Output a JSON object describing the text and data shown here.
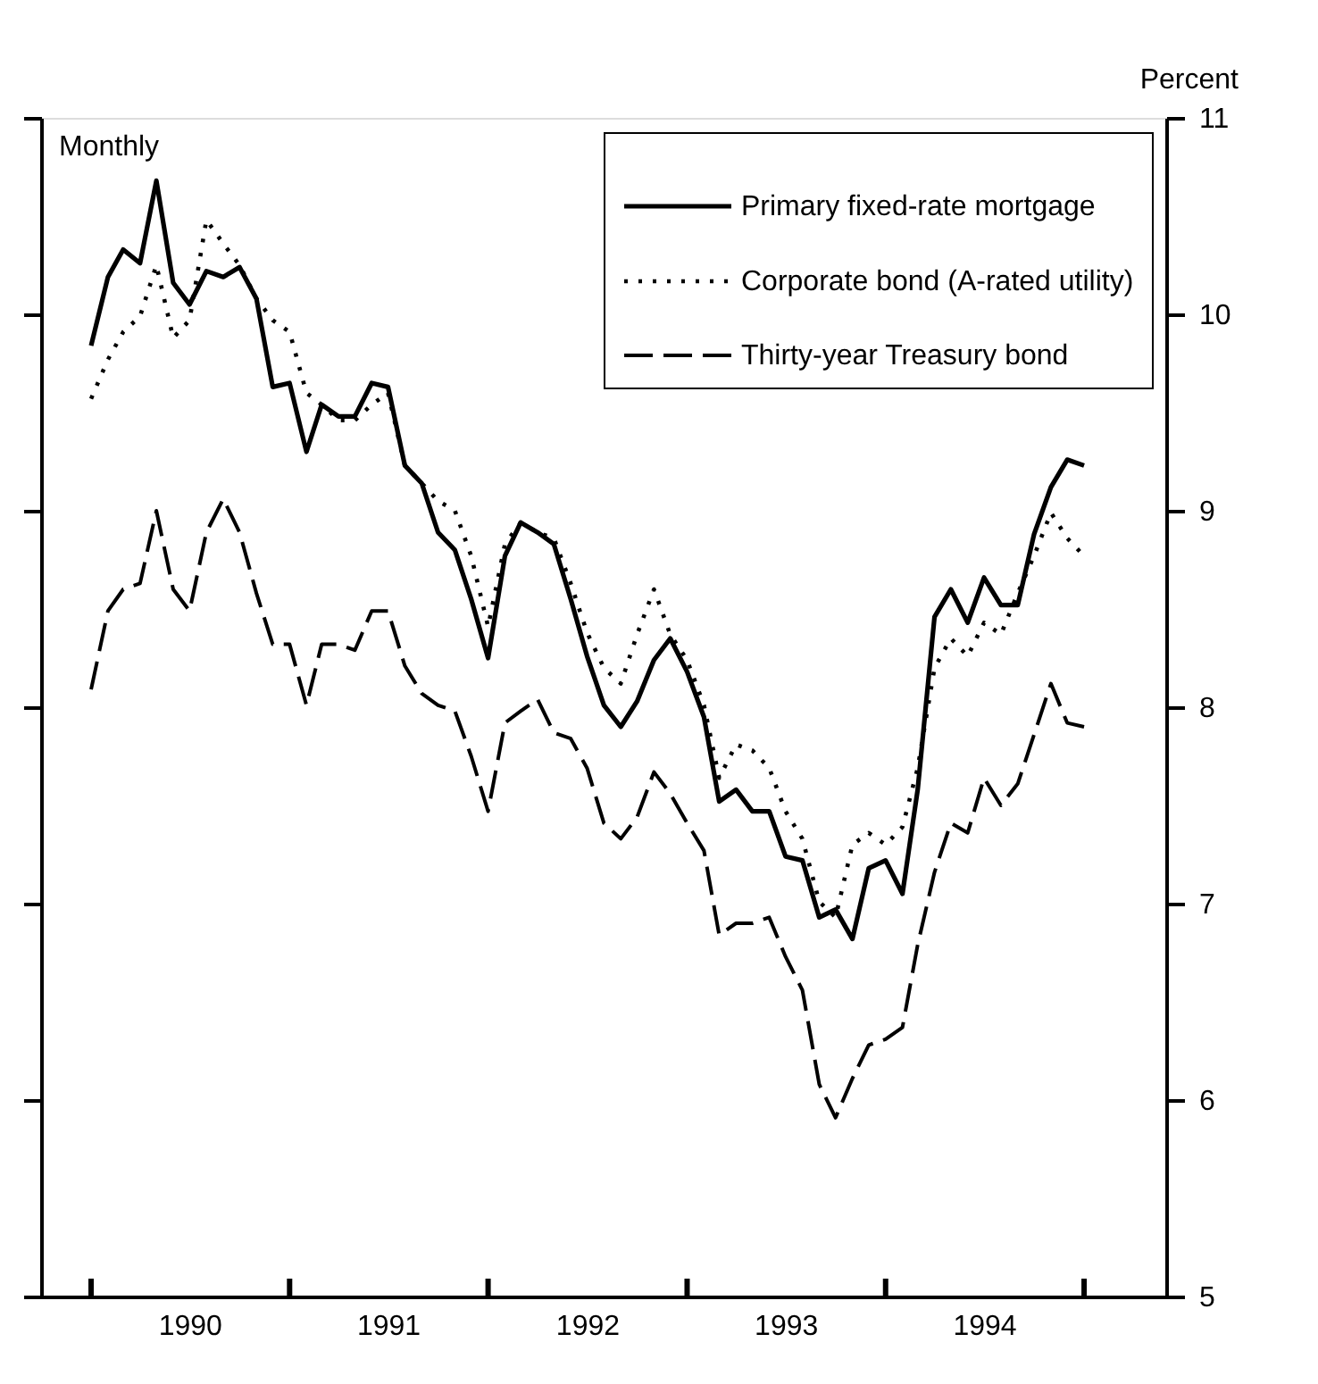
{
  "chart_data": {
    "type": "line",
    "y2label": "Percent",
    "annotations": [
      "Monthly"
    ],
    "legend": "top right",
    "grid": false,
    "x": [
      "1990-01",
      "1990-02",
      "1990-03",
      "1990-04",
      "1990-05",
      "1990-06",
      "1990-07",
      "1990-08",
      "1990-09",
      "1990-10",
      "1990-11",
      "1990-12",
      "1991-01",
      "1991-02",
      "1991-03",
      "1991-04",
      "1991-05",
      "1991-06",
      "1991-07",
      "1991-08",
      "1991-09",
      "1991-10",
      "1991-11",
      "1991-12",
      "1992-01",
      "1992-02",
      "1992-03",
      "1992-04",
      "1992-05",
      "1992-06",
      "1992-07",
      "1992-08",
      "1992-09",
      "1992-10",
      "1992-11",
      "1992-12",
      "1993-01",
      "1993-02",
      "1993-03",
      "1993-04",
      "1993-05",
      "1993-06",
      "1993-07",
      "1993-08",
      "1993-09",
      "1993-10",
      "1993-11",
      "1993-12",
      "1994-01",
      "1994-02",
      "1994-03",
      "1994-04",
      "1994-05",
      "1994-06",
      "1994-07",
      "1994-08",
      "1994-09",
      "1994-10",
      "1994-11",
      "1994-12",
      "1995-01"
    ],
    "series": [
      {
        "name": "Primary fixed-rate mortgage",
        "color": "#000000",
        "line_style": "solid",
        "axis": "y2",
        "values": [
          9.84,
          10.19,
          10.33,
          10.26,
          10.68,
          10.16,
          10.05,
          10.22,
          10.19,
          10.24,
          10.08,
          9.63,
          9.65,
          9.3,
          9.54,
          9.48,
          9.48,
          9.65,
          9.63,
          9.23,
          9.14,
          8.89,
          8.8,
          8.55,
          8.25,
          8.77,
          8.94,
          8.89,
          8.83,
          8.55,
          8.26,
          8.01,
          7.9,
          8.03,
          8.24,
          8.35,
          8.18,
          7.95,
          7.52,
          7.58,
          7.47,
          7.47,
          7.24,
          7.22,
          6.93,
          6.97,
          6.82,
          7.18,
          7.22,
          7.05,
          7.58,
          8.46,
          8.6,
          8.43,
          8.66,
          8.52,
          8.52,
          8.88,
          9.12,
          9.26,
          9.23
        ]
      },
      {
        "name": "Corporate bond (A-rated utility)",
        "color": "#000000",
        "line_style": "dotted",
        "axis": "y2",
        "values": [
          9.57,
          9.77,
          9.91,
          9.99,
          10.25,
          9.88,
          9.97,
          10.48,
          10.36,
          10.25,
          10.08,
          9.97,
          9.91,
          9.6,
          9.54,
          9.46,
          9.46,
          9.54,
          9.6,
          9.23,
          9.14,
          9.05,
          9.0,
          8.77,
          8.41,
          8.83,
          8.94,
          8.89,
          8.86,
          8.63,
          8.38,
          8.2,
          8.12,
          8.37,
          8.6,
          8.37,
          8.24,
          8.01,
          7.64,
          7.81,
          7.78,
          7.69,
          7.47,
          7.33,
          7.01,
          6.93,
          7.3,
          7.36,
          7.3,
          7.39,
          7.69,
          8.2,
          8.35,
          8.26,
          8.43,
          8.37,
          8.58,
          8.77,
          8.99,
          8.86,
          8.77
        ]
      },
      {
        "name": "Thirty-year Treasury bond",
        "color": "#000000",
        "line_style": "dashed",
        "axis": "y2",
        "values": [
          8.09,
          8.49,
          8.6,
          8.63,
          9.0,
          8.6,
          8.49,
          8.89,
          9.06,
          8.89,
          8.58,
          8.32,
          8.32,
          8.01,
          8.32,
          8.32,
          8.29,
          8.49,
          8.49,
          8.21,
          8.07,
          8.01,
          7.98,
          7.75,
          7.47,
          7.92,
          7.98,
          8.04,
          7.87,
          7.84,
          7.69,
          7.41,
          7.33,
          7.44,
          7.67,
          7.56,
          7.41,
          7.27,
          6.84,
          6.9,
          6.9,
          6.93,
          6.73,
          6.56,
          6.08,
          5.91,
          6.11,
          6.28,
          6.31,
          6.37,
          6.79,
          7.16,
          7.41,
          7.36,
          7.64,
          7.5,
          7.61,
          7.86,
          8.12,
          7.92,
          7.9
        ]
      }
    ],
    "xlim": [
      "1989-10-01",
      "1995-06-01"
    ],
    "xticks": [
      {
        "value": "1990-01-01",
        "label": null
      },
      {
        "value": "1991-01-01",
        "label": null
      },
      {
        "value": "1992-01-01",
        "label": null
      },
      {
        "value": "1993-01-01",
        "label": null
      },
      {
        "value": "1994-01-01",
        "label": null
      },
      {
        "value": "1995-01-01",
        "label": null
      },
      {
        "value": "1990-07-01",
        "label": "1990"
      },
      {
        "value": "1991-07-01",
        "label": "1991"
      },
      {
        "value": "1992-07-01",
        "label": "1992"
      },
      {
        "value": "1993-07-01",
        "label": "1993"
      },
      {
        "value": "1994-07-01",
        "label": "1994"
      }
    ],
    "y2lim": [
      5,
      11
    ],
    "y2ticks": [
      5,
      6,
      7,
      8,
      9,
      10,
      11
    ]
  }
}
